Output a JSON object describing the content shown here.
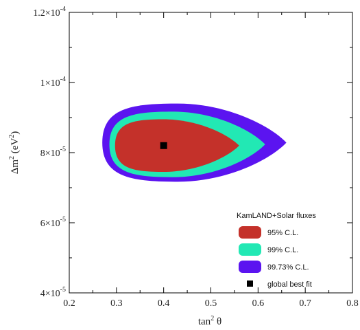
{
  "chart_data": {
    "type": "contour",
    "xlabel": "tan² θ",
    "ylabel": "Δm² (eV²)",
    "xlim": [
      0.2,
      0.8
    ],
    "ylim": [
      4e-05,
      0.00012
    ],
    "x_ticks": [
      "0.2",
      "0.3",
      "0.4",
      "0.5",
      "0.6",
      "0.7",
      "0.8"
    ],
    "y_ticks": [
      {
        "value": 4e-05,
        "mantissa": "4",
        "exp": "-5"
      },
      {
        "value": 6e-05,
        "mantissa": "6",
        "exp": "-5"
      },
      {
        "value": 8e-05,
        "mantissa": "8",
        "exp": "-5"
      },
      {
        "value": 0.0001,
        "mantissa": "1",
        "exp": "-4"
      },
      {
        "value": 0.00012,
        "mantissa": "1.2",
        "exp": "-4"
      }
    ],
    "legend": {
      "title": "KamLAND+Solar fluxes",
      "placement": "bottom-right"
    },
    "series": [
      {
        "name": "99.73% C.L.",
        "color": "#5b14f0",
        "x_range": [
          0.27,
          0.66
        ],
        "y_range": [
          7.17e-05,
          9.4e-05
        ],
        "x_at_y_extremes": 0.43
      },
      {
        "name": "99% C.L.",
        "color": "#22e8b4",
        "x_range": [
          0.285,
          0.615
        ],
        "y_range": [
          7.3e-05,
          9.17e-05
        ],
        "x_at_y_extremes": 0.42
      },
      {
        "name": "95% C.L.",
        "color": "#c4312a",
        "x_range": [
          0.297,
          0.56
        ],
        "y_range": [
          7.45e-05,
          8.95e-05
        ],
        "x_at_y_extremes": 0.4
      }
    ],
    "best_fit": {
      "name": "global best fit",
      "x": 0.4,
      "y": 8.2e-05,
      "color": "#000000"
    }
  }
}
